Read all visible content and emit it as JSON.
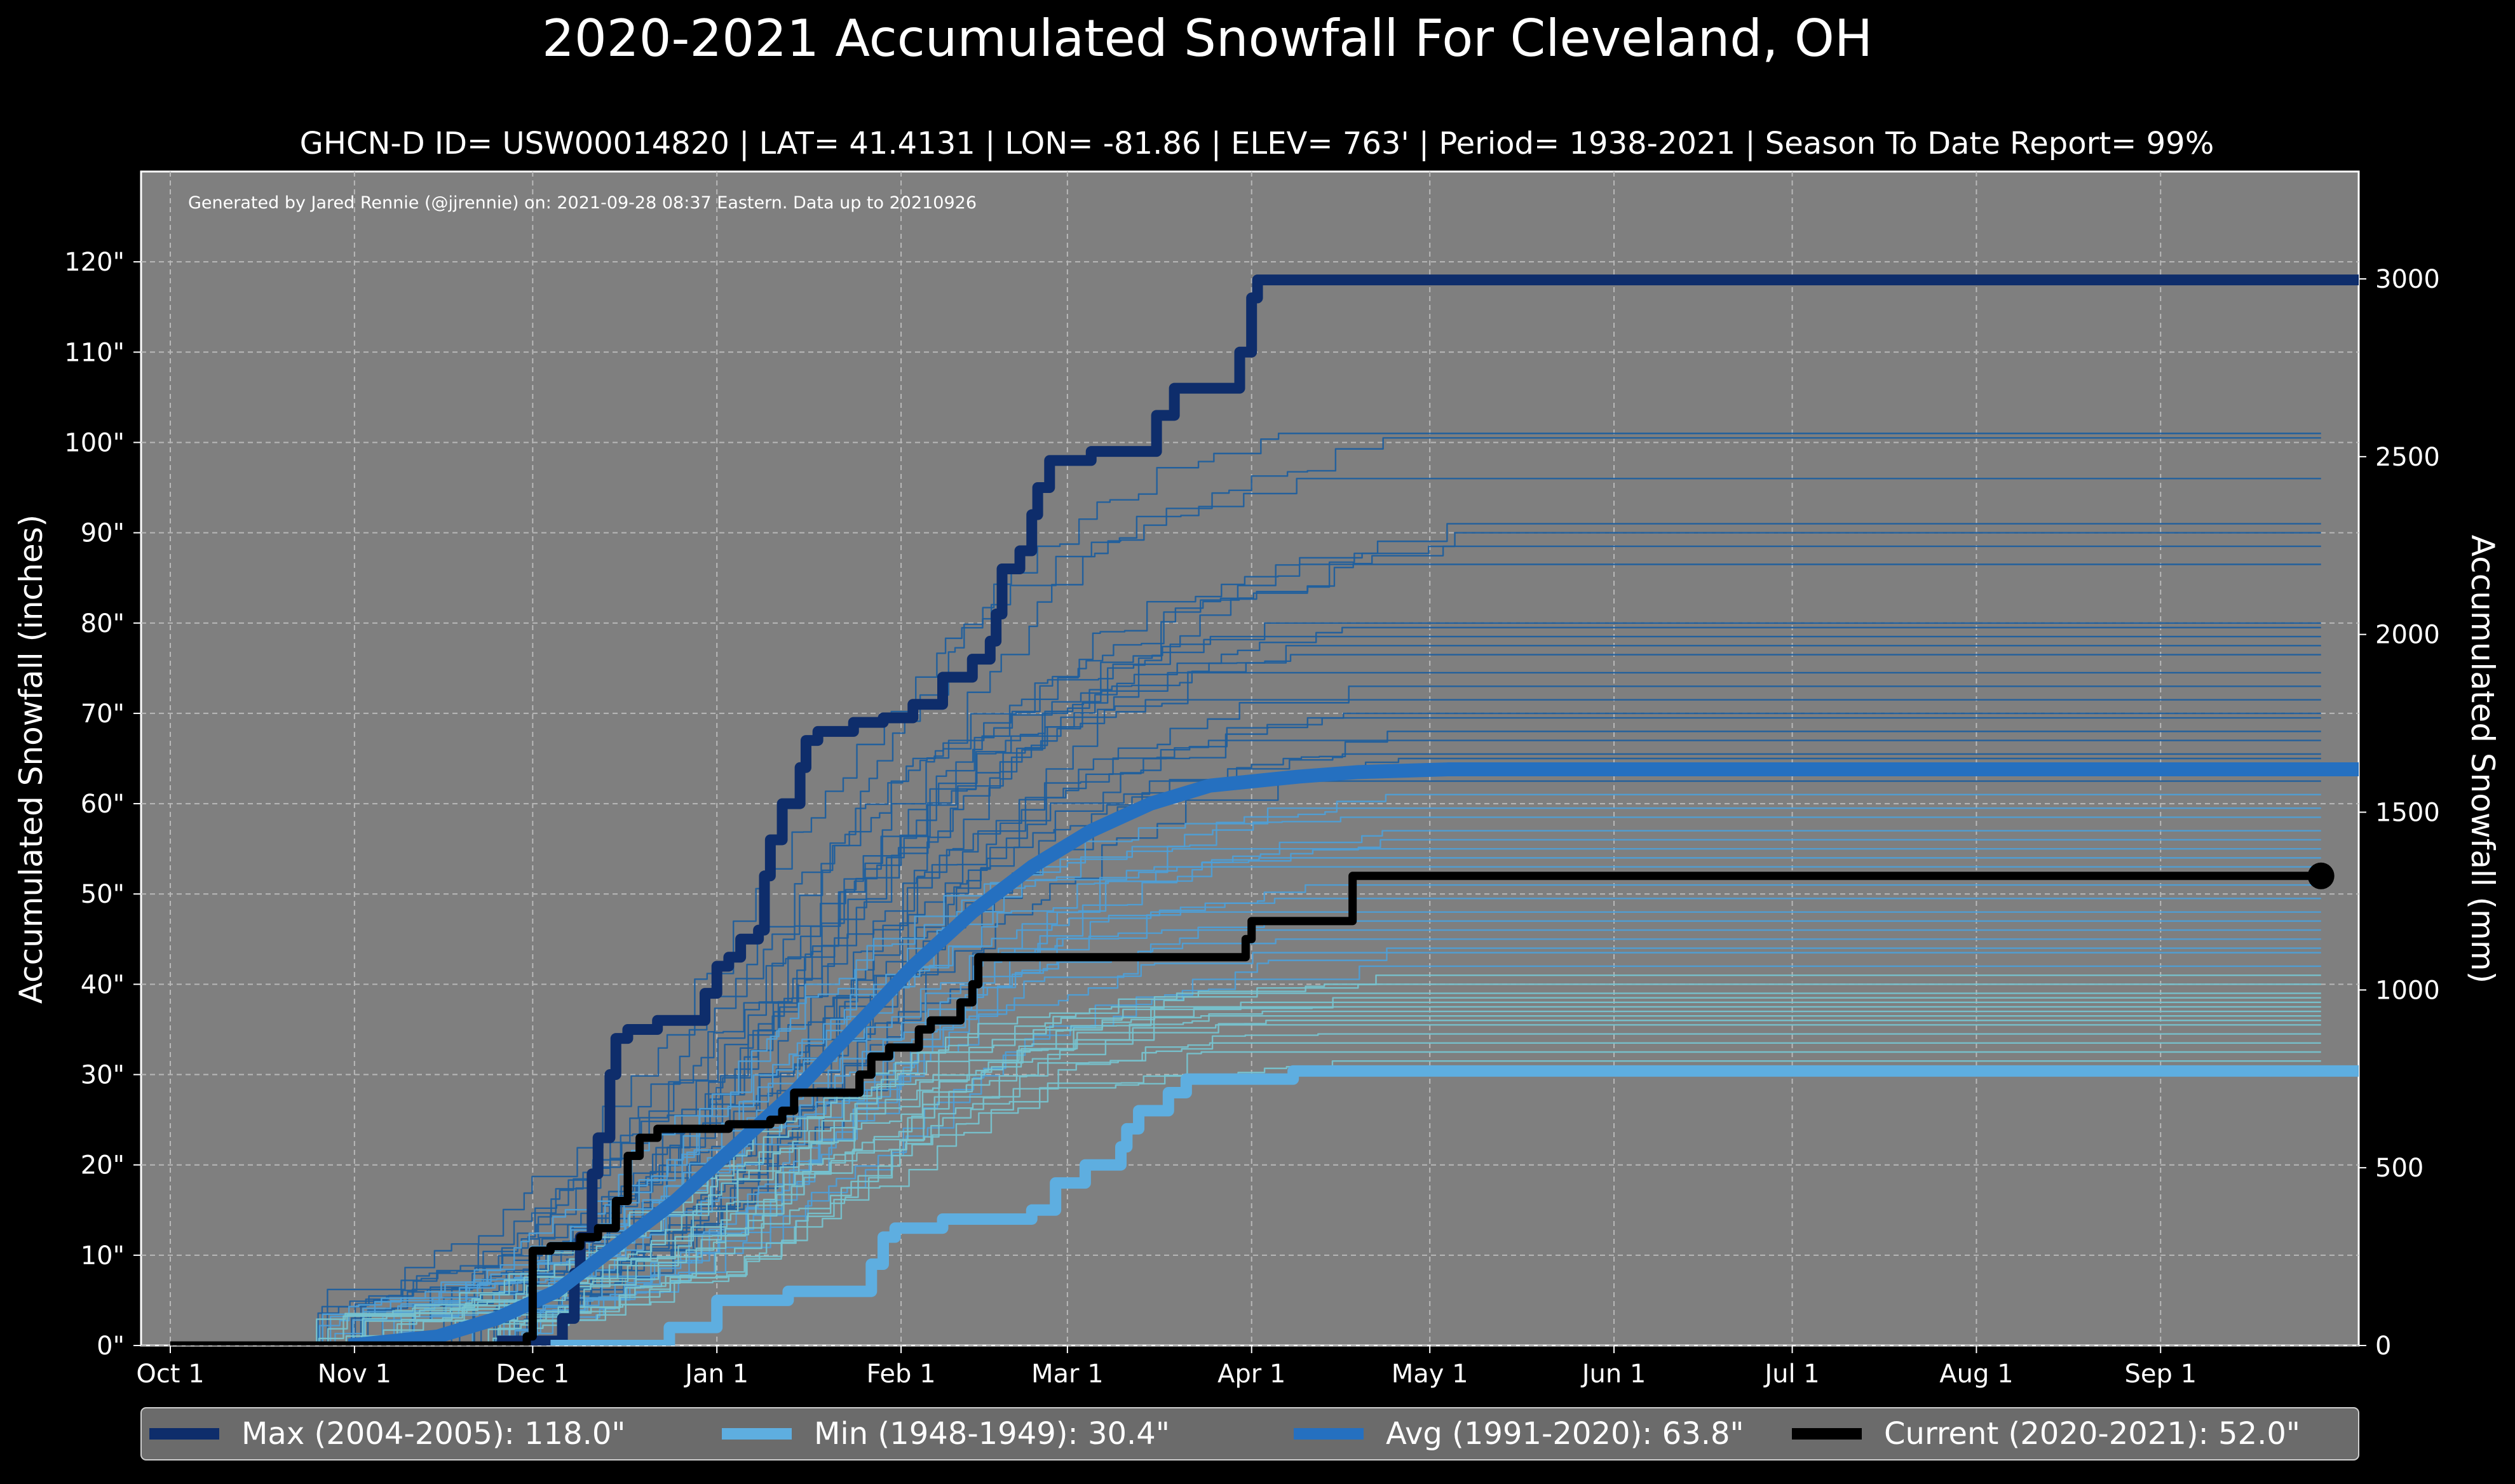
{
  "chart_data": {
    "type": "line",
    "title": "2020-2021 Accumulated Snowfall For Cleveland, OH",
    "subtitle": "GHCN-D ID= USW00014820 | LAT= 41.4131 | LON= -81.86 | ELEV= 763' | Period= 1938-2021 | Season To Date Report= 99%",
    "credit": "Generated by Jared Rennie (@jjrennie) on: 2021-09-28 08:37 Eastern. Data up to 20210926",
    "ylabel_left": "Accumulated Snowfall (inches)",
    "ylabel_right": "Accumulated Snowfall (mm)",
    "x_unit": "days since Oct 1",
    "xlim": [
      -5,
      365
    ],
    "ylim": [
      0,
      130
    ],
    "ylim_right_mm": [
      0,
      3302
    ],
    "grid": true,
    "legend_position": "bottom",
    "x_ticks": [
      {
        "label": "Oct 1",
        "day": 0
      },
      {
        "label": "Nov 1",
        "day": 31
      },
      {
        "label": "Dec 1",
        "day": 61
      },
      {
        "label": "Jan 1",
        "day": 92
      },
      {
        "label": "Feb 1",
        "day": 123
      },
      {
        "label": "Mar 1",
        "day": 151
      },
      {
        "label": "Apr 1",
        "day": 182
      },
      {
        "label": "May 1",
        "day": 212
      },
      {
        "label": "Jun 1",
        "day": 243
      },
      {
        "label": "Jul 1",
        "day": 273
      },
      {
        "label": "Aug 1",
        "day": 304
      },
      {
        "label": "Sep 1",
        "day": 335
      }
    ],
    "y_ticks_left": [
      {
        "label": "0\"",
        "value": 0
      },
      {
        "label": "10\"",
        "value": 10
      },
      {
        "label": "20\"",
        "value": 20
      },
      {
        "label": "30\"",
        "value": 30
      },
      {
        "label": "40\"",
        "value": 40
      },
      {
        "label": "50\"",
        "value": 50
      },
      {
        "label": "60\"",
        "value": 60
      },
      {
        "label": "70\"",
        "value": 70
      },
      {
        "label": "80\"",
        "value": 80
      },
      {
        "label": "90\"",
        "value": 90
      },
      {
        "label": "100\"",
        "value": 100
      },
      {
        "label": "110\"",
        "value": 110
      },
      {
        "label": "120\"",
        "value": 120
      }
    ],
    "y_ticks_right": [
      {
        "label": "0",
        "value": 0
      },
      {
        "label": "500",
        "value": 500
      },
      {
        "label": "1000",
        "value": 1000
      },
      {
        "label": "1500",
        "value": 1500
      },
      {
        "label": "2000",
        "value": 2000
      },
      {
        "label": "2500",
        "value": 2500
      },
      {
        "label": "3000",
        "value": 3000
      }
    ],
    "series": [
      {
        "name": "Max (2004-2005)",
        "legend_label": "Max (2004-2005):  118.0\"",
        "color": "#0e2d6b",
        "points": [
          [
            55,
            0.5
          ],
          [
            66,
            0.5
          ],
          [
            66,
            3
          ],
          [
            68,
            3
          ],
          [
            68,
            8
          ],
          [
            69,
            8
          ],
          [
            69,
            12
          ],
          [
            71,
            12
          ],
          [
            71,
            19
          ],
          [
            72,
            19
          ],
          [
            72,
            23
          ],
          [
            74,
            23
          ],
          [
            74,
            30
          ],
          [
            75,
            30
          ],
          [
            75,
            34
          ],
          [
            77,
            34
          ],
          [
            77,
            35
          ],
          [
            82,
            35
          ],
          [
            82,
            36
          ],
          [
            90,
            36
          ],
          [
            90,
            39
          ],
          [
            92,
            39
          ],
          [
            92,
            42
          ],
          [
            94,
            42
          ],
          [
            94,
            43
          ],
          [
            96,
            43
          ],
          [
            96,
            45
          ],
          [
            99,
            45
          ],
          [
            99,
            46
          ],
          [
            100,
            46
          ],
          [
            100,
            52
          ],
          [
            101,
            52
          ],
          [
            101,
            56
          ],
          [
            103,
            56
          ],
          [
            103,
            60
          ],
          [
            106,
            60
          ],
          [
            106,
            64
          ],
          [
            107,
            64
          ],
          [
            107,
            67
          ],
          [
            109,
            67
          ],
          [
            109,
            68
          ],
          [
            115,
            68
          ],
          [
            115,
            69
          ],
          [
            120,
            69
          ],
          [
            120,
            69.5
          ],
          [
            125,
            69.5
          ],
          [
            125,
            71
          ],
          [
            130,
            71
          ],
          [
            130,
            74
          ],
          [
            135,
            74
          ],
          [
            135,
            76
          ],
          [
            138,
            76
          ],
          [
            138,
            78
          ],
          [
            139,
            78
          ],
          [
            139,
            81
          ],
          [
            140,
            81
          ],
          [
            140,
            86
          ],
          [
            143,
            86
          ],
          [
            143,
            88
          ],
          [
            145,
            88
          ],
          [
            145,
            92
          ],
          [
            146,
            92
          ],
          [
            146,
            95
          ],
          [
            148,
            95
          ],
          [
            148,
            98
          ],
          [
            155,
            98
          ],
          [
            155,
            99
          ],
          [
            166,
            99
          ],
          [
            166,
            103
          ],
          [
            169,
            103
          ],
          [
            169,
            106
          ],
          [
            180,
            106
          ],
          [
            180,
            110
          ],
          [
            182,
            110
          ],
          [
            182,
            116
          ],
          [
            183,
            116
          ],
          [
            183,
            118
          ],
          [
            370,
            118
          ]
        ]
      },
      {
        "name": "Min (1948-1949)",
        "legend_label": "Min (1948-1949):   30.4\"",
        "color": "#5eaee0",
        "points": [
          [
            64,
            0
          ],
          [
            84,
            0
          ],
          [
            84,
            2
          ],
          [
            92,
            2
          ],
          [
            92,
            5
          ],
          [
            104,
            5
          ],
          [
            104,
            6
          ],
          [
            118,
            6
          ],
          [
            118,
            9
          ],
          [
            120,
            9
          ],
          [
            120,
            12
          ],
          [
            122,
            12
          ],
          [
            122,
            13
          ],
          [
            130,
            13
          ],
          [
            130,
            14
          ],
          [
            145,
            14
          ],
          [
            145,
            15
          ],
          [
            149,
            15
          ],
          [
            149,
            18
          ],
          [
            154,
            18
          ],
          [
            154,
            20
          ],
          [
            160,
            20
          ],
          [
            160,
            22
          ],
          [
            161,
            22
          ],
          [
            161,
            24
          ],
          [
            163,
            24
          ],
          [
            163,
            26
          ],
          [
            168,
            26
          ],
          [
            168,
            28
          ],
          [
            171,
            28
          ],
          [
            171,
            29.5
          ],
          [
            189,
            29.5
          ],
          [
            189,
            30.4
          ],
          [
            370,
            30.4
          ]
        ]
      },
      {
        "name": "Avg (1991-2020)",
        "legend_label": "Avg (1991-2020):   63.8\"",
        "color": "#2570c0",
        "points": [
          [
            30,
            0
          ],
          [
            45,
            1
          ],
          [
            55,
            3
          ],
          [
            65,
            6
          ],
          [
            75,
            11
          ],
          [
            85,
            16
          ],
          [
            95,
            22
          ],
          [
            105,
            28
          ],
          [
            115,
            35
          ],
          [
            125,
            42
          ],
          [
            135,
            48
          ],
          [
            145,
            53
          ],
          [
            155,
            57
          ],
          [
            165,
            60
          ],
          [
            175,
            62
          ],
          [
            190,
            63
          ],
          [
            200,
            63.5
          ],
          [
            215,
            63.8
          ],
          [
            370,
            63.8
          ]
        ]
      },
      {
        "name": "Current (2020-2021)",
        "legend_label": "Current (2020-2021):   52.0\"",
        "color": "#000000",
        "points": [
          [
            0,
            0
          ],
          [
            60,
            0
          ],
          [
            60,
            1
          ],
          [
            61,
            1
          ],
          [
            61,
            10.5
          ],
          [
            64,
            10.5
          ],
          [
            64,
            11
          ],
          [
            69,
            11
          ],
          [
            69,
            12
          ],
          [
            72,
            12
          ],
          [
            72,
            13
          ],
          [
            75,
            13
          ],
          [
            75,
            16
          ],
          [
            77,
            16
          ],
          [
            77,
            21
          ],
          [
            79,
            21
          ],
          [
            79,
            23
          ],
          [
            82,
            23
          ],
          [
            82,
            24
          ],
          [
            94,
            24
          ],
          [
            94,
            24.5
          ],
          [
            101,
            24.5
          ],
          [
            101,
            25
          ],
          [
            103,
            25
          ],
          [
            103,
            26
          ],
          [
            105,
            26
          ],
          [
            105,
            28
          ],
          [
            116,
            28
          ],
          [
            116,
            30
          ],
          [
            118,
            30
          ],
          [
            118,
            32
          ],
          [
            121,
            32
          ],
          [
            121,
            33
          ],
          [
            126,
            33
          ],
          [
            126,
            35
          ],
          [
            128,
            35
          ],
          [
            128,
            36
          ],
          [
            133,
            36
          ],
          [
            133,
            38
          ],
          [
            135,
            38
          ],
          [
            135,
            40
          ],
          [
            136,
            40
          ],
          [
            136,
            43
          ],
          [
            181,
            43
          ],
          [
            181,
            45
          ],
          [
            182,
            45
          ],
          [
            182,
            47
          ],
          [
            199,
            47
          ],
          [
            199,
            52
          ],
          [
            362,
            52
          ]
        ],
        "end_marker": {
          "day": 362,
          "value": 52
        }
      }
    ],
    "historical_series_note": "thin lines = individual seasons 1938-2021 (final totals read from right edge)",
    "historical_finals": [
      101,
      100.5,
      96,
      91,
      90,
      88.5,
      86.5,
      80,
      79.5,
      78.5,
      77.5,
      76.5,
      74.5,
      73,
      71.5,
      70,
      69.5,
      68,
      67,
      65.5,
      65,
      62.5,
      61,
      59.5,
      58.5,
      57,
      56,
      55,
      54,
      53,
      51,
      49.5,
      48,
      47,
      46,
      45,
      44,
      43.5,
      42,
      41,
      40,
      39,
      38.5,
      38,
      37.5,
      37,
      36.5,
      36,
      35.5,
      34.5,
      33.5,
      32.5,
      31.5
    ],
    "background": "#7f7f7f",
    "figure_background": "#000000"
  }
}
